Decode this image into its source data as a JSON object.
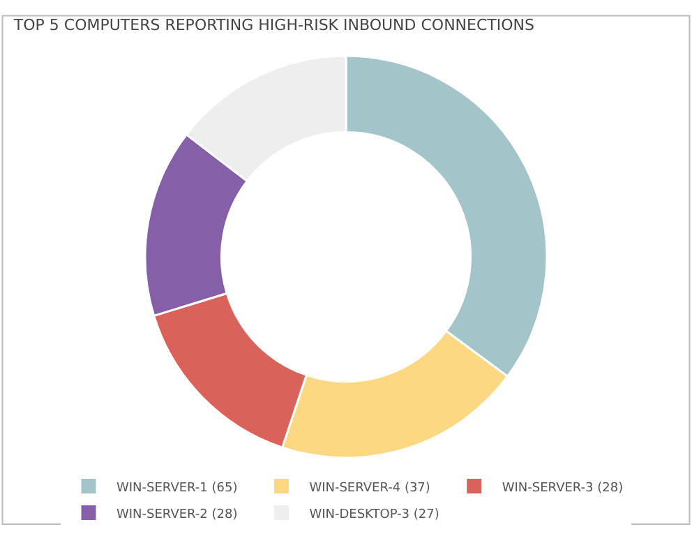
{
  "chart_data": {
    "type": "donut",
    "title": "TOP 5 COMPUTERS REPORTING HIGH-RISK INBOUND CONNECTIONS",
    "categories": [
      "WIN-SERVER-1 (65)",
      "WIN-SERVER-4 (37)",
      "WIN-SERVER-3 (28)",
      "WIN-SERVER-2 (28)",
      "WIN-DESKTOP-3 (27)"
    ],
    "values": [
      65,
      37,
      28,
      28,
      27
    ],
    "colors": [
      "#a3c4c8",
      "#fdd882",
      "#d9625a",
      "#8560a8",
      "#eeeeee"
    ],
    "legend": "bottom"
  }
}
